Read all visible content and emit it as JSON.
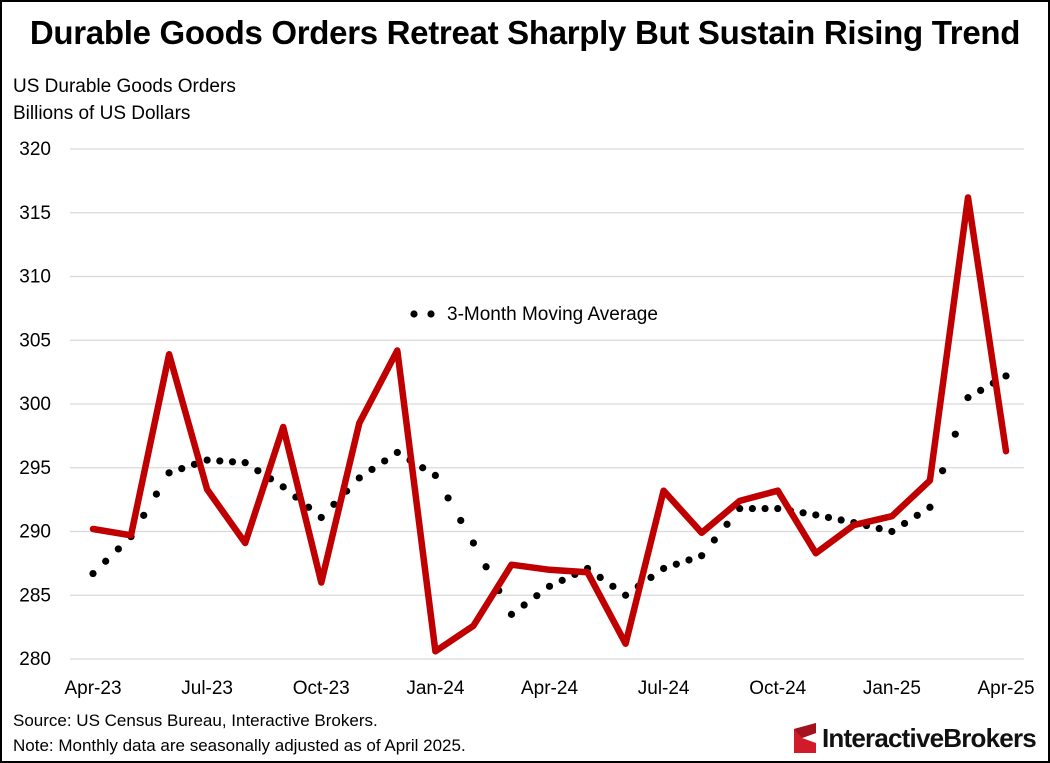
{
  "title": "Durable Goods Orders Retreat Sharply But Sustain Rising Trend",
  "subtitle_line1": "US Durable Goods Orders",
  "subtitle_line2": "Billions of US Dollars",
  "colors": {
    "main_line": "#C00000",
    "moving_avg": "#000000",
    "grid": "#D9D9D9"
  },
  "chart_data": {
    "type": "line",
    "title": "Durable Goods Orders Retreat Sharply But Sustain Rising Trend",
    "ylabel": "Billions of US Dollars",
    "ylim": [
      280,
      320
    ],
    "yticks": [
      280,
      285,
      290,
      295,
      300,
      305,
      310,
      315,
      320
    ],
    "x_tick_labels": [
      "Apr-23",
      "Jul-23",
      "Oct-23",
      "Jan-24",
      "Apr-24",
      "Jul-24",
      "Oct-24",
      "Jan-25",
      "Apr-25"
    ],
    "x": [
      "Apr-23",
      "May-23",
      "Jun-23",
      "Jul-23",
      "Aug-23",
      "Sep-23",
      "Oct-23",
      "Nov-23",
      "Dec-23",
      "Jan-24",
      "Feb-24",
      "Mar-24",
      "Apr-24",
      "May-24",
      "Jun-24",
      "Jul-24",
      "Aug-24",
      "Sep-24",
      "Oct-24",
      "Nov-24",
      "Dec-24",
      "Jan-25",
      "Feb-25",
      "Mar-25",
      "Apr-25"
    ],
    "series": [
      {
        "name": "US Durable Goods Orders",
        "style": "solid",
        "values": [
          290.2,
          289.7,
          303.9,
          293.3,
          289.1,
          298.2,
          286.0,
          298.5,
          304.2,
          280.6,
          282.6,
          287.4,
          287.0,
          286.8,
          281.2,
          293.2,
          289.9,
          292.4,
          293.2,
          288.3,
          290.5,
          291.2,
          294.0,
          316.2,
          296.3
        ]
      },
      {
        "name": "3-Month Moving Average",
        "style": "dotted",
        "values": [
          286.7,
          289.6,
          294.6,
          295.6,
          295.4,
          293.5,
          291.1,
          294.2,
          296.2,
          294.4,
          289.1,
          283.5,
          285.7,
          287.1,
          285.0,
          287.1,
          288.1,
          291.8,
          291.8,
          291.3,
          290.7,
          290.0,
          291.9,
          300.5,
          302.2
        ]
      }
    ],
    "legend": {
      "entries": [
        "3-Month Moving Average"
      ],
      "placement": "center"
    }
  },
  "source_note": "Source: US Census Bureau, Interactive Brokers.",
  "data_note": "Note: Monthly data are seasonally adjusted as of April 2025.",
  "logo": {
    "text": "InteractiveBrokers"
  }
}
